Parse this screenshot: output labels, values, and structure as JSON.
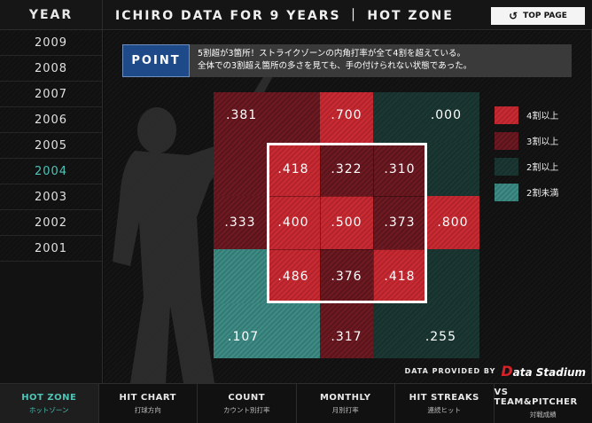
{
  "years": {
    "header": "YEAR",
    "items": [
      "2009",
      "2008",
      "2007",
      "2006",
      "2005",
      "2004",
      "2003",
      "2002",
      "2001"
    ],
    "active": "2004"
  },
  "header": {
    "title": "ICHIRO DATA FOR 9 YEARS ｜ HOT ZONE",
    "top_page": "TOP PAGE"
  },
  "point": {
    "tag": "POINT",
    "line1": "5割超が3箇所！ストライクゾーンの内角打率が全て4割を超えている。",
    "line2": "全体での3割超え箇所の多さを見ても、手の付けられない状態であった。"
  },
  "zone": {
    "outer": {
      "top_left": ".381",
      "top_center": ".700",
      "top_right": ".000",
      "mid_left": ".333",
      "mid_right": ".800",
      "bottom_left": ".107",
      "bottom_center": ".317",
      "bottom_right": ".255"
    },
    "inner": [
      [
        ".418",
        ".322",
        ".310"
      ],
      [
        ".400",
        ".500",
        ".373"
      ],
      [
        ".486",
        ".376",
        ".418"
      ]
    ]
  },
  "legend": [
    {
      "label": "4割以上",
      "color": "#c92b33"
    },
    {
      "label": "3割以上",
      "color": "#6f1a22"
    },
    {
      "label": "2割以上",
      "color": "#1d3834"
    },
    {
      "label": "2割未満",
      "color": "#3e8c85"
    }
  ],
  "provided": {
    "label": "DATA PROVIDED BY",
    "logo_d": "D",
    "logo_text": "ata Stadium"
  },
  "tabs": [
    {
      "main": "HOT ZONE",
      "sub": "ホットゾーン"
    },
    {
      "main": "HIT CHART",
      "sub": "打球方向"
    },
    {
      "main": "COUNT",
      "sub": "カウント別打率"
    },
    {
      "main": "MONTHLY",
      "sub": "月別打率"
    },
    {
      "main": "HIT STREAKS",
      "sub": "連続ヒット"
    },
    {
      "main": "VS TEAM&PITCHER",
      "sub": "対戦成績"
    }
  ]
}
